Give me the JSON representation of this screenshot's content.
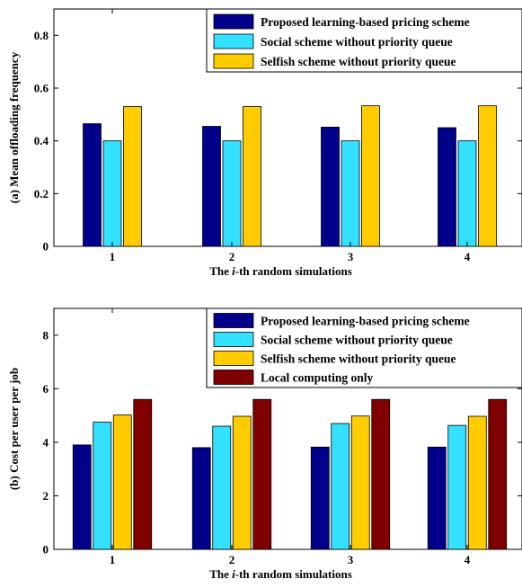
{
  "chart_data": [
    {
      "type": "bar",
      "title": "",
      "xlabel_prefix": "The ",
      "xlabel_italic": "i",
      "xlabel_suffix": "-th random simulations",
      "ylabel": "(a) Mean offloading frequency",
      "categories": [
        "1",
        "2",
        "3",
        "4"
      ],
      "ylim": [
        0,
        0.9
      ],
      "yticks": [
        "0",
        "0.2",
        "0.4",
        "0.6",
        "0.8"
      ],
      "ytick_values": [
        0,
        0.2,
        0.4,
        0.6,
        0.8
      ],
      "legend_position": "top-right",
      "series": [
        {
          "name": "Proposed learning-based pricing scheme",
          "color": "#00008B",
          "values": [
            0.465,
            0.455,
            0.452,
            0.45
          ]
        },
        {
          "name": "Social scheme without priority queue",
          "color": "#33E0FF",
          "values": [
            0.4,
            0.4,
            0.4,
            0.4
          ]
        },
        {
          "name": "Selfish scheme without priority queue",
          "color": "#FFCC00",
          "values": [
            0.53,
            0.53,
            0.533,
            0.533
          ]
        }
      ]
    },
    {
      "type": "bar",
      "title": "",
      "xlabel_prefix": "The ",
      "xlabel_italic": "i",
      "xlabel_suffix": "-th random simulations",
      "ylabel": "(b) Cost per user per job",
      "categories": [
        "1",
        "2",
        "3",
        "4"
      ],
      "ylim": [
        0,
        9
      ],
      "yticks": [
        "0",
        "2",
        "4",
        "6",
        "8"
      ],
      "ytick_values": [
        0,
        2,
        4,
        6,
        8
      ],
      "legend_position": "top-right",
      "series": [
        {
          "name": "Proposed learning-based pricing scheme",
          "color": "#00008B",
          "values": [
            3.9,
            3.8,
            3.82,
            3.82
          ]
        },
        {
          "name": "Social scheme without priority queue",
          "color": "#33E0FF",
          "values": [
            4.75,
            4.6,
            4.7,
            4.63
          ]
        },
        {
          "name": "Selfish scheme without priority queue",
          "color": "#FFCC00",
          "values": [
            5.02,
            4.97,
            4.98,
            4.97
          ]
        },
        {
          "name": "Local computing only",
          "color": "#800000",
          "values": [
            5.6,
            5.6,
            5.6,
            5.6
          ]
        }
      ]
    }
  ]
}
